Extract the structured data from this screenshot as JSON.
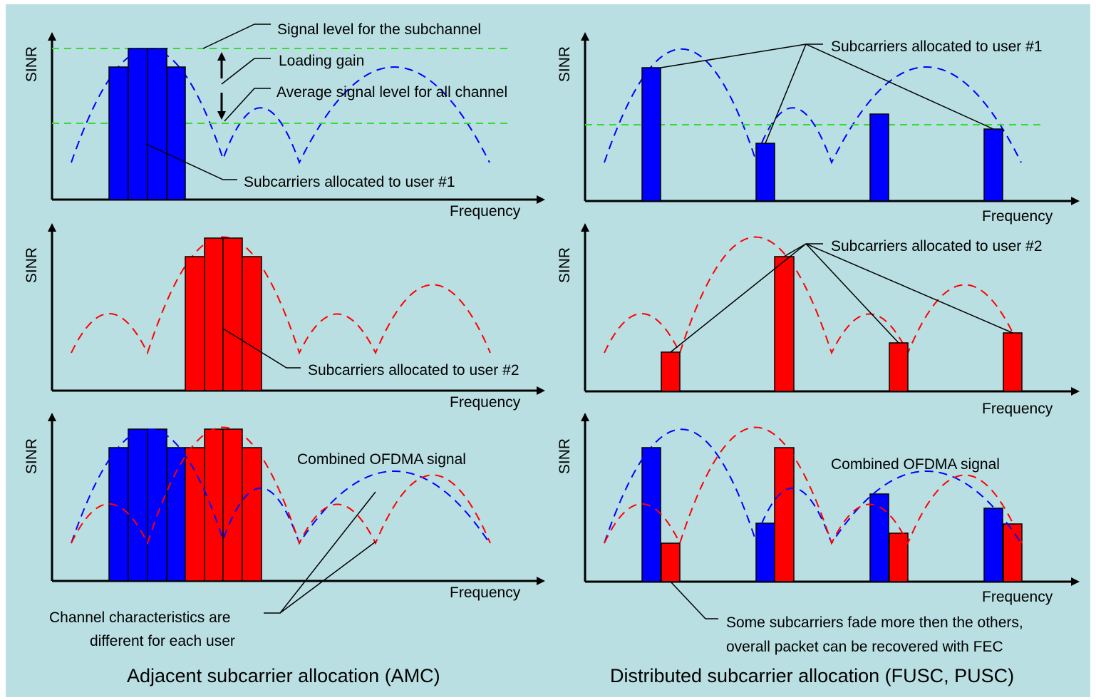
{
  "colors": {
    "background": "#b9dfe2",
    "user1": "#0000ff",
    "user2": "#ff0000",
    "average_line": "#33dd33"
  },
  "axis": {
    "x_label": "Frequency",
    "y_label": "SINR"
  },
  "amc": {
    "title": "Adjacent subcarrier allocation (AMC)",
    "panel1": {
      "signal_level": "Signal level for the subchannel",
      "loading_gain": "Loading gain",
      "average_level": "Average signal level for all channel",
      "subcarriers": "Subcarriers allocated to user  #1"
    },
    "panel2": {
      "subcarriers": "Subcarriers allocated to user  #2"
    },
    "panel3": {
      "combined": "Combined OFDMA signal",
      "note_line1": "Channel characteristics are",
      "note_line2": "different for each user"
    }
  },
  "distributed": {
    "title": "Distributed subcarrier allocation (FUSC, PUSC)",
    "panel1": {
      "subcarriers": "Subcarriers allocated to user  #1"
    },
    "panel2": {
      "subcarriers": "Subcarriers allocated to user  #2"
    },
    "panel3": {
      "combined": "Combined OFDMA signal",
      "note_line1": "Some subcarriers fade more then the others,",
      "note_line2": "overall packet can be recovered with FEC"
    }
  }
}
